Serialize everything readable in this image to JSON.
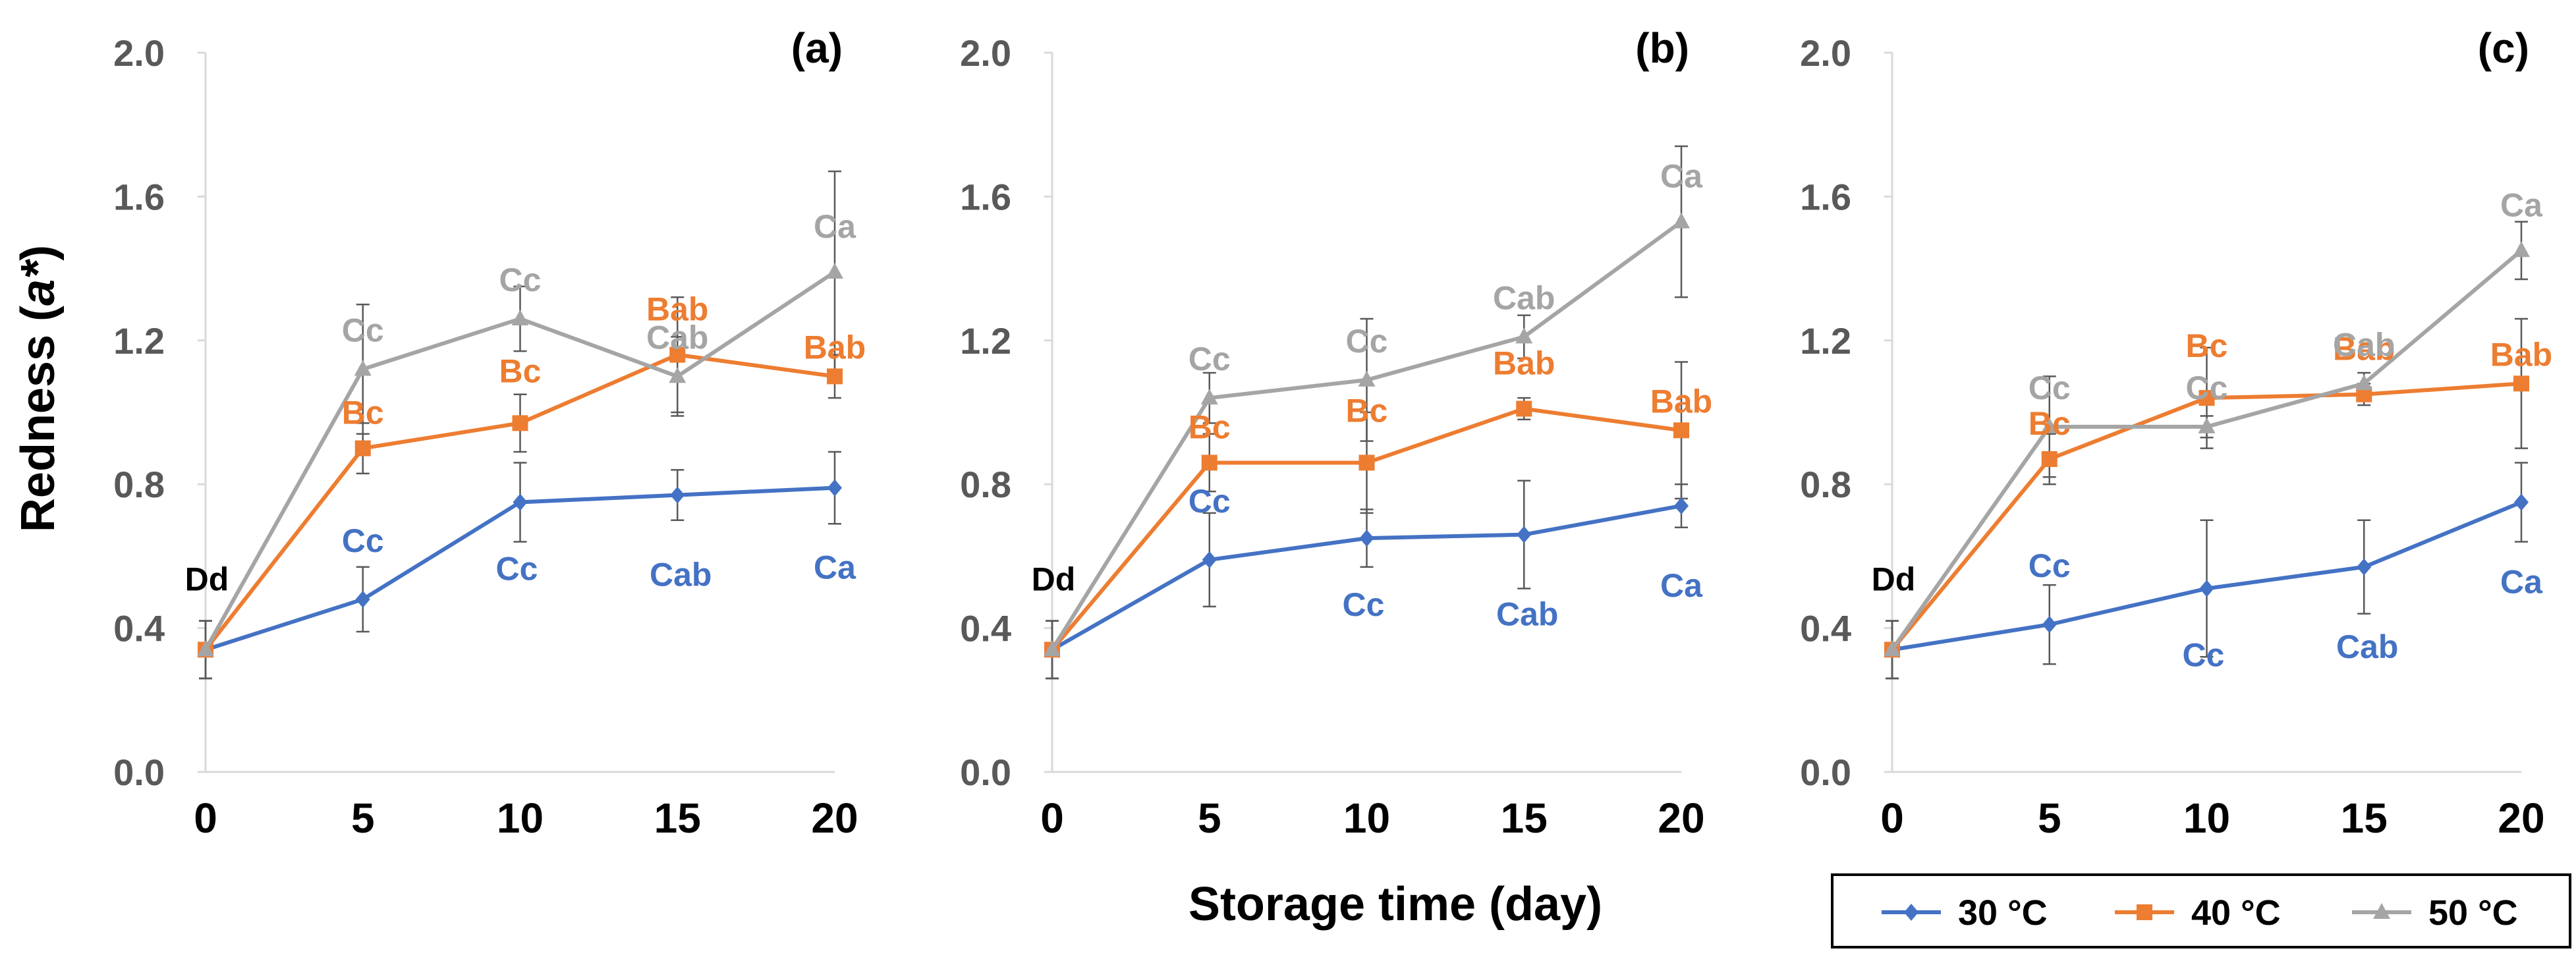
{
  "chart_data": {
    "type": "line",
    "shared": {
      "ylabel": "Redness (a*)",
      "ylabel_prefix": "Redness (",
      "ylabel_var": "a*",
      "ylabel_suffix": ")",
      "xlabel": "Storage time (day)",
      "x": [
        0,
        5,
        10,
        15,
        20
      ],
      "x_tick_labels": [
        "0",
        "5",
        "10",
        "15",
        "20"
      ],
      "y_ticks": [
        0.0,
        0.4,
        0.8,
        1.2,
        1.6,
        2.0
      ],
      "y_tick_labels": [
        "0.0",
        "0.4",
        "0.8",
        "1.2",
        "1.6",
        "2.0"
      ],
      "ylim": [
        0,
        2.0
      ],
      "xlim": [
        0,
        20
      ],
      "grid": false,
      "legend_position": "bottom-right",
      "colors": {
        "30": "#4472C4",
        "40": "#ED7D31",
        "50": "#A5A5A5",
        "initial": "#000000"
      },
      "initial_label": "Dd"
    },
    "legend": [
      {
        "name": "30 °C",
        "color": "#4472C4",
        "marker": "diamond"
      },
      {
        "name": "40 °C",
        "color": "#ED7D31",
        "marker": "square"
      },
      {
        "name": "50 °C",
        "color": "#A5A5A5",
        "marker": "triangle"
      }
    ],
    "panels": [
      {
        "label": "(a)",
        "series": [
          {
            "name": "30 °C",
            "values": [
              0.34,
              0.48,
              0.75,
              0.77,
              0.79
            ],
            "errors": [
              0.08,
              0.09,
              0.11,
              0.07,
              0.1
            ],
            "labels": [
              "",
              "Cc",
              "Cc",
              "Cab",
              "Ca"
            ]
          },
          {
            "name": "40 °C",
            "values": [
              0.34,
              0.9,
              0.97,
              1.16,
              1.1
            ],
            "errors": [
              0.08,
              0.07,
              0.08,
              0.16,
              0.06
            ],
            "labels": [
              "",
              "Bc",
              "Bc",
              "Bab",
              "Bab"
            ]
          },
          {
            "name": "50 °C",
            "values": [
              0.34,
              1.12,
              1.26,
              1.1,
              1.39
            ],
            "errors": [
              0.08,
              0.18,
              0.09,
              0.11,
              0.28
            ],
            "labels": [
              "",
              "Cc",
              "Cc",
              "Cab",
              "Ca"
            ]
          }
        ]
      },
      {
        "label": "(b)",
        "series": [
          {
            "name": "30 °C",
            "values": [
              0.34,
              0.59,
              0.65,
              0.66,
              0.74
            ],
            "errors": [
              0.08,
              0.13,
              0.08,
              0.15,
              0.06
            ],
            "labels": [
              "",
              "Cc",
              "Cc",
              "Cab",
              "Ca"
            ]
          },
          {
            "name": "40 °C",
            "values": [
              0.34,
              0.86,
              0.86,
              1.01,
              0.95
            ],
            "errors": [
              0.08,
              0.08,
              0.14,
              0.03,
              0.19
            ],
            "labels": [
              "",
              "Bc",
              "Bc",
              "Bab",
              "Bab"
            ]
          },
          {
            "name": "50 °C",
            "values": [
              0.34,
              1.04,
              1.09,
              1.21,
              1.53
            ],
            "errors": [
              0.08,
              0.07,
              0.17,
              0.06,
              0.21
            ],
            "labels": [
              "",
              "Cc",
              "Cc",
              "Cab",
              "Ca"
            ]
          }
        ]
      },
      {
        "label": "(c)",
        "series": [
          {
            "name": "30 °C",
            "values": [
              0.34,
              0.41,
              0.51,
              0.57,
              0.75
            ],
            "errors": [
              0.08,
              0.11,
              0.19,
              0.13,
              0.11
            ],
            "labels": [
              "",
              "Cc",
              "Cc",
              "Cab",
              "Ca"
            ]
          },
          {
            "name": "40 °C",
            "values": [
              0.34,
              0.87,
              1.04,
              1.05,
              1.08
            ],
            "errors": [
              0.08,
              0.07,
              0.14,
              0.03,
              0.18
            ],
            "labels": [
              "",
              "Bc",
              "Bc",
              "Bab",
              "Bab"
            ]
          },
          {
            "name": "50 °C",
            "values": [
              0.34,
              0.96,
              0.96,
              1.08,
              1.45
            ],
            "errors": [
              0.08,
              0.14,
              0.03,
              0.03,
              0.08
            ],
            "labels": [
              "",
              "Cc",
              "Cc",
              "Cab",
              "Ca"
            ]
          }
        ]
      }
    ]
  }
}
